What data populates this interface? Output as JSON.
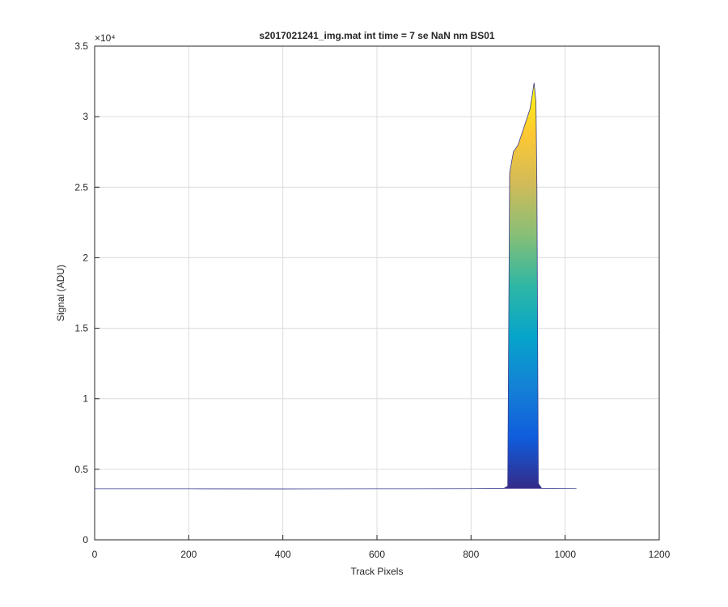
{
  "chart_data": {
    "type": "surface-profile",
    "title": "s2017021241_img.mat int time = 7 se  NaN nm BS01",
    "x_label": "Track Pixels",
    "y_label": "Signal (ADU)",
    "y_exponent_label": "×10⁴",
    "x": [
      0,
      200,
      400,
      600,
      800,
      870,
      878,
      882,
      890,
      900,
      910,
      920,
      925,
      930,
      934,
      938,
      940,
      943,
      950,
      1024
    ],
    "values": [
      0.362,
      0.362,
      0.361,
      0.362,
      0.363,
      0.365,
      0.38,
      2.6,
      2.75,
      2.8,
      2.9,
      3.0,
      3.05,
      3.15,
      3.24,
      3.1,
      2.5,
      0.4,
      0.365,
      0.363
    ],
    "colormap": [
      "#352a87",
      "#0f5cdd",
      "#1481d6",
      "#06a4ca",
      "#2eb7a4",
      "#87bf77",
      "#d1bb59",
      "#fec832",
      "#f9fb0e"
    ],
    "line_color": "#3a3a8c",
    "xlim": [
      0,
      1200
    ],
    "xticks": [
      0,
      200,
      400,
      600,
      800,
      1000,
      1200
    ],
    "ylim": [
      0,
      3.5
    ],
    "yticks": [
      0,
      0.5,
      1,
      1.5,
      2,
      2.5,
      3,
      3.5
    ],
    "grid": true
  }
}
